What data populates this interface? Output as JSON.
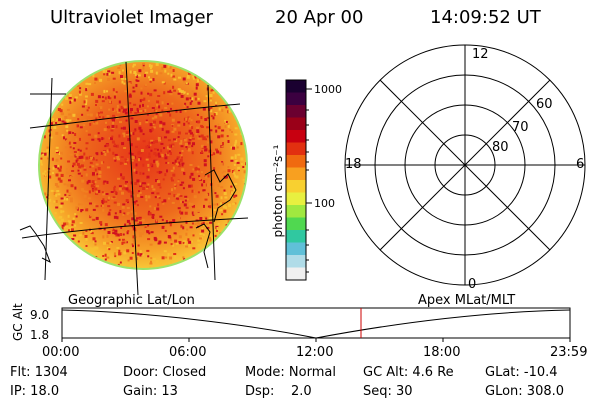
{
  "header": {
    "instrument": "Ultraviolet Imager",
    "date": "20 Apr 00",
    "time": "14:09:52 UT"
  },
  "colorbar": {
    "unit_label": "photon cm⁻²s⁻¹",
    "ticks": [
      "1000",
      "100"
    ],
    "colors": [
      "#1a0030",
      "#3b0040",
      "#6b0030",
      "#9a0018",
      "#c80010",
      "#e23010",
      "#f06a10",
      "#f8a020",
      "#f8d030",
      "#e8f040",
      "#a0e840",
      "#50d850",
      "#30c8a0",
      "#60c0d8",
      "#b0dce8",
      "#f0f0f0"
    ]
  },
  "image_panel": {
    "label": "Geographic Lat/Lon",
    "disk_colors": [
      "#f08020",
      "#e03018",
      "#d01020",
      "#f8c030"
    ]
  },
  "polar_plot": {
    "label": "Apex MLat/MLT",
    "lat_labels": [
      "60",
      "70",
      "80"
    ],
    "mlt_labels": {
      "top": "12",
      "left": "18",
      "right": "6",
      "bottom": "0"
    }
  },
  "altitude_plot": {
    "ylabel": "GC Alt",
    "ymax_label": "9.0",
    "ymin_label": "1.8",
    "x_ticks": [
      "00:00",
      "06:00",
      "12:00",
      "18:00",
      "23:59"
    ],
    "marker_color": "#cc0000"
  },
  "footer": {
    "rows": [
      [
        "Flt: 1304",
        "Door: Closed",
        "Mode: Normal",
        "GC Alt: 4.6 Re",
        "GLat: -10.4"
      ],
      [
        "IP: 18.0",
        "Gain: 13",
        "Dsp:    2.0",
        "Seq: 30",
        "GLon: 308.0"
      ]
    ]
  }
}
